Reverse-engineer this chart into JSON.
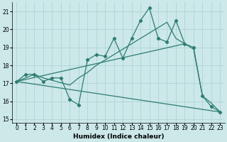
{
  "xlabel": "Humidex (Indice chaleur)",
  "xlim": [
    -0.5,
    23.5
  ],
  "ylim": [
    14.8,
    21.5
  ],
  "yticks": [
    15,
    16,
    17,
    18,
    19,
    20,
    21
  ],
  "xticks": [
    0,
    1,
    2,
    3,
    4,
    5,
    6,
    7,
    8,
    9,
    10,
    11,
    12,
    13,
    14,
    15,
    16,
    17,
    18,
    19,
    20,
    21,
    22,
    23
  ],
  "bg_color": "#cce8e8",
  "line_color": "#2e7d70",
  "grid_color": "#b0d4d4",
  "series1_x": [
    0,
    1,
    2,
    3,
    4,
    5,
    6,
    7,
    8,
    9,
    10,
    11,
    12,
    13,
    14,
    15,
    16,
    17,
    18,
    19,
    20,
    21,
    22,
    23
  ],
  "series1_y": [
    17.1,
    17.5,
    17.5,
    17.1,
    17.3,
    17.3,
    16.1,
    15.8,
    18.3,
    18.6,
    18.5,
    19.5,
    18.4,
    19.5,
    20.5,
    21.2,
    19.5,
    19.3,
    20.5,
    19.2,
    19.0,
    16.3,
    15.7,
    15.4
  ],
  "series2_x": [
    0,
    2,
    3,
    6,
    7,
    8,
    9,
    10,
    11,
    13,
    14,
    15,
    16,
    17,
    18,
    19,
    20,
    21,
    22,
    23
  ],
  "series2_y": [
    17.1,
    17.5,
    17.3,
    16.9,
    17.3,
    17.6,
    18.0,
    18.3,
    18.6,
    19.2,
    19.5,
    19.8,
    20.1,
    20.4,
    19.5,
    19.2,
    18.9,
    16.3,
    15.9,
    15.4
  ],
  "series3_x": [
    0,
    23
  ],
  "series3_y": [
    17.1,
    15.4
  ],
  "series4_x": [
    0,
    19
  ],
  "series4_y": [
    17.1,
    19.2
  ]
}
